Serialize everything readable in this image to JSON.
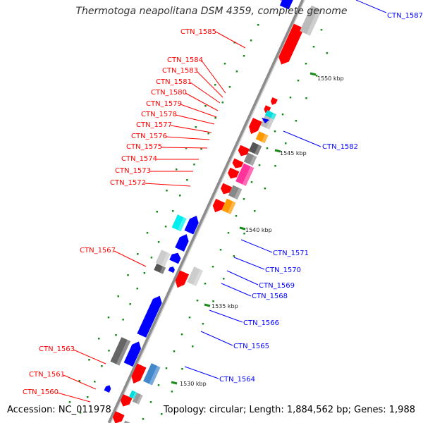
{
  "title": "Thermotoga neapolitana DSM 4359, complete genome",
  "footer": {
    "accession": "Accession: NC_011978",
    "topology": "Topology: circular; Length: 1,884,562 bp; Genes: 1,988"
  },
  "colors": {
    "minus_label": "#ff0000",
    "plus_label": "#0000ff",
    "backbone": "#8c8c8c",
    "dots": "#1a8a1a"
  },
  "ticks": [
    {
      "label": "1530 kbp"
    },
    {
      "label": "1535 kbp"
    },
    {
      "label": "1540 kbp"
    },
    {
      "label": "1545 kbp"
    },
    {
      "label": "1550 kbp"
    }
  ],
  "minus_labels": [
    {
      "text": "CTN_1585"
    },
    {
      "text": "CTN_1584"
    },
    {
      "text": "CTN_1583"
    },
    {
      "text": "CTN_1581"
    },
    {
      "text": "CTN_1580"
    },
    {
      "text": "CTN_1579"
    },
    {
      "text": "CTN_1578"
    },
    {
      "text": "CTN_1577"
    },
    {
      "text": "CTN_1576"
    },
    {
      "text": "CTN_1575"
    },
    {
      "text": "CTN_1574"
    },
    {
      "text": "CTN_1573"
    },
    {
      "text": "CTN_1572"
    },
    {
      "text": "CTN_1567"
    },
    {
      "text": "CTN_1563"
    },
    {
      "text": "CTN_1561"
    },
    {
      "text": "CTN_1560"
    }
  ],
  "plus_labels": [
    {
      "text": "CTN_1587"
    },
    {
      "text": "CTN_1582"
    },
    {
      "text": "CTN_1571"
    },
    {
      "text": "CTN_1570"
    },
    {
      "text": "CTN_1569"
    },
    {
      "text": "CTN_1568"
    },
    {
      "text": "CTN_1566"
    },
    {
      "text": "CTN_1565"
    },
    {
      "text": "CTN_1564"
    }
  ]
}
